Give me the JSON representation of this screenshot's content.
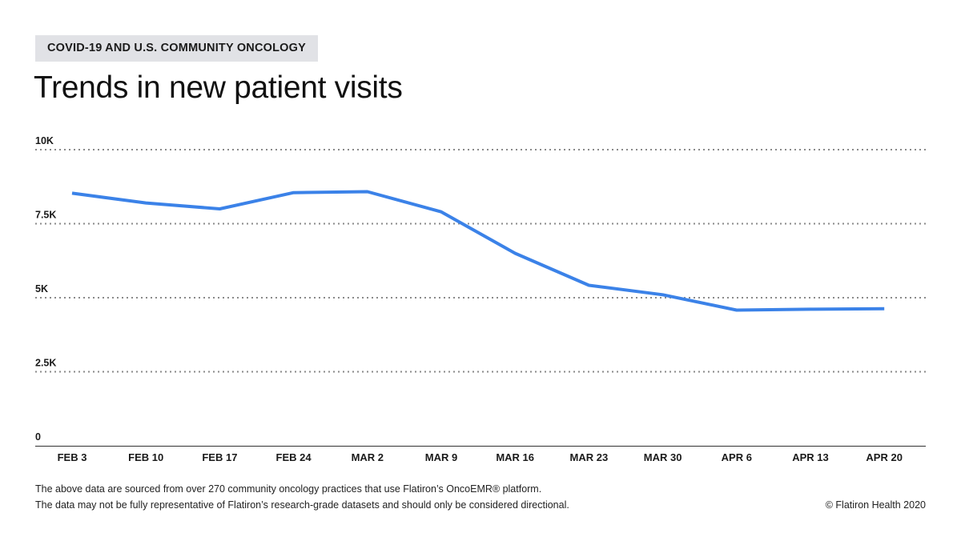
{
  "header": {
    "tag": "COVID-19 AND U.S. COMMUNITY ONCOLOGY",
    "title": "Trends in new patient visits"
  },
  "chart_data": {
    "type": "line",
    "title": "Trends in new patient visits",
    "xlabel": "",
    "ylabel": "",
    "categories": [
      "FEB 3",
      "FEB 10",
      "FEB 17",
      "FEB 24",
      "MAR 2",
      "MAR 9",
      "MAR 16",
      "MAR 23",
      "MAR 30",
      "APR 6",
      "APR 13",
      "APR 20"
    ],
    "series": [
      {
        "name": "New patient visits",
        "color": "#3b82e8",
        "values": [
          8530,
          8200,
          8000,
          8550,
          8580,
          7900,
          6500,
          5420,
          5100,
          4580,
          4610,
          4630
        ]
      }
    ],
    "ylim": [
      0,
      10000
    ],
    "yticks": [
      0,
      2500,
      5000,
      7500,
      10000
    ],
    "ytick_labels": [
      "0",
      "2.5K",
      "5K",
      "7.5K",
      "10K"
    ],
    "grid": true
  },
  "footer": {
    "line1": "The above data are sourced from over 270 community oncology practices that use Flatiron’s OncoEMR® platform.",
    "line2": "The data may not be fully representative of Flatiron’s research-grade datasets and should only be considered directional.",
    "copyright": "© Flatiron Health 2020"
  }
}
